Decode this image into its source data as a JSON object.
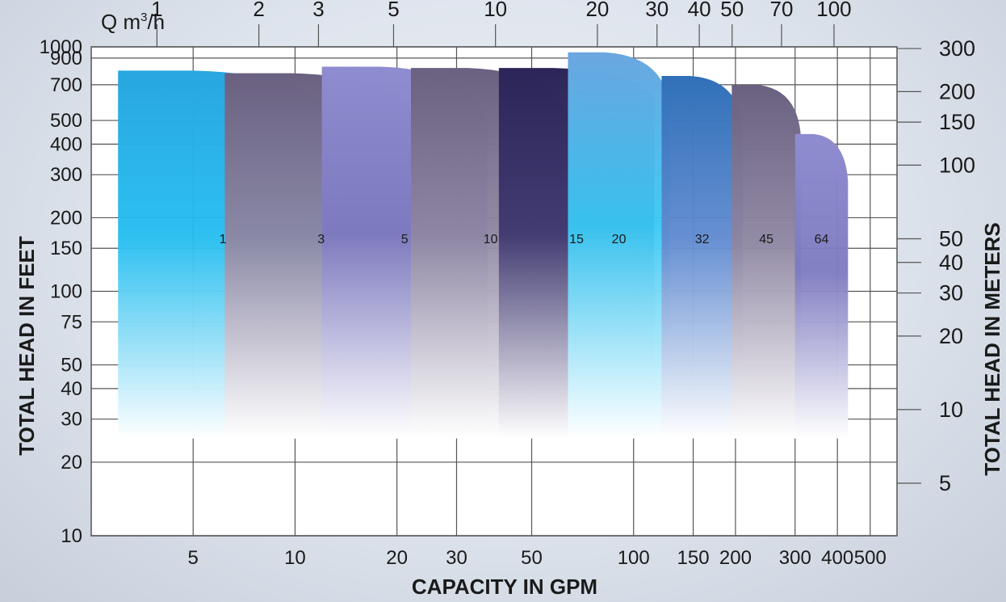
{
  "chart_data": {
    "type": "area",
    "axes": {
      "x_bottom": {
        "title": "CAPACITY IN GPM",
        "scale": "log",
        "range": [
          2.5,
          600
        ],
        "ticks": [
          5,
          10,
          20,
          30,
          50,
          100,
          150,
          200,
          300,
          400,
          500
        ]
      },
      "x_top": {
        "title_main": "Q m",
        "title_sup": "3",
        "title_tail": "/h",
        "ticks": [
          1,
          2,
          3,
          5,
          10,
          20,
          30,
          40,
          50,
          70,
          100
        ]
      },
      "y_left": {
        "title": "TOTAL HEAD IN FEET",
        "scale": "log",
        "range": [
          10,
          1000
        ],
        "ticks": [
          10,
          20,
          30,
          40,
          50,
          75,
          100,
          150,
          200,
          300,
          400,
          500,
          700,
          900,
          1000
        ]
      },
      "y_right": {
        "title": "TOTAL HEAD IN METERS",
        "ticks": [
          5,
          10,
          20,
          30,
          40,
          50,
          100,
          150,
          200,
          300
        ]
      }
    },
    "grid": true,
    "series": [
      {
        "name": "1",
        "color_top": "#29a6df",
        "color_mid": "#22bdf0",
        "x_start": 3,
        "x_end": 12.5,
        "head_max": 800,
        "head_end": 500,
        "head_min": 25
      },
      {
        "name": "3",
        "color_top": "#6a6080",
        "color_mid": "#8e86a2",
        "x_start": 6.2,
        "x_end": 23,
        "head_max": 780,
        "head_end": 490,
        "head_min": 25
      },
      {
        "name": "5",
        "color_top": "#8f8cd0",
        "color_mid": "#7c79c0",
        "x_start": 12,
        "x_end": 37,
        "head_max": 830,
        "head_end": 470,
        "head_min": 25
      },
      {
        "name": "10",
        "color_top": "#6a6080",
        "color_mid": "#8e86a2",
        "x_start": 22,
        "x_end": 65,
        "head_max": 820,
        "head_end": 465,
        "head_min": 25
      },
      {
        "name": "15",
        "color_top": "#2c2558",
        "color_mid": "#3f3870",
        "x_start": 40,
        "x_end": 115,
        "head_max": 820,
        "head_end": 600,
        "head_min": 25
      },
      {
        "name": "20",
        "color_top": "#6ba6e0",
        "color_mid": "#38c8f4",
        "x_start": 64,
        "x_end": 128,
        "head_max": 950,
        "head_end": 560,
        "head_min": 25
      },
      {
        "name": "32",
        "color_top": "#3070b8",
        "color_mid": "#5f8ad0",
        "x_start": 121,
        "x_end": 210,
        "head_max": 760,
        "head_end": 470,
        "head_min": 25
      },
      {
        "name": "45",
        "color_top": "#6a6080",
        "color_mid": "#8e86a2",
        "x_start": 195,
        "x_end": 312,
        "head_max": 700,
        "head_end": 430,
        "head_min": 25
      },
      {
        "name": "64",
        "color_top": "#8f8cd0",
        "color_mid": "#7c79c0",
        "x_start": 300,
        "x_end": 430,
        "head_max": 440,
        "head_end": 280,
        "head_min": 25
      }
    ],
    "label_head": 150
  }
}
